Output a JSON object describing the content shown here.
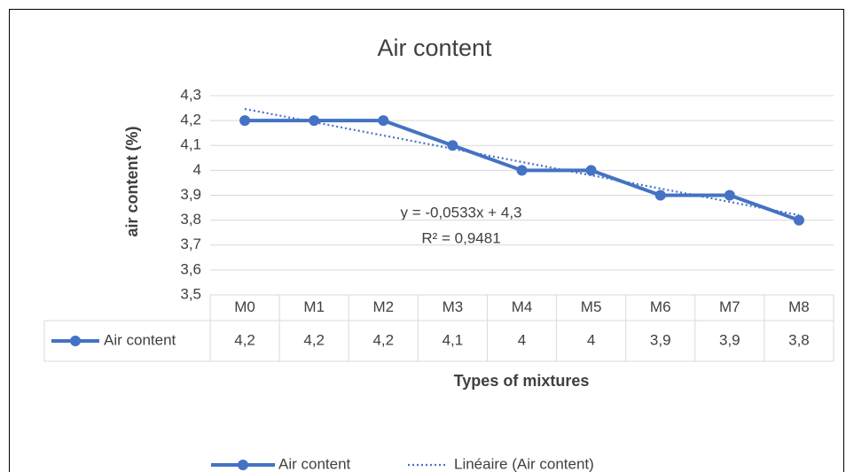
{
  "chart_data": {
    "type": "line",
    "title": "Air content",
    "y_label": "air content  (%)",
    "x_label": "Types of mixtures",
    "categories": [
      "M0",
      "M1",
      "M2",
      "M3",
      "M4",
      "M5",
      "M6",
      "M7",
      "M8"
    ],
    "series": [
      {
        "name": "Air content",
        "color": "#4472c4",
        "values": [
          4.2,
          4.2,
          4.2,
          4.1,
          4,
          4,
          3.9,
          3.9,
          3.8
        ],
        "value_labels": [
          "4,2",
          "4,2",
          "4,2",
          "4,1",
          "4",
          "4",
          "3,9",
          "3,9",
          "3,8"
        ]
      }
    ],
    "trendline": {
      "name": "Linéaire (Air content)",
      "slope": -0.0533,
      "intercept": 4.3,
      "equation": "y = -0,0533x + 4,3",
      "r2_label": "R² = 0,9481"
    },
    "ylim": [
      3.5,
      4.3
    ],
    "yticks": [
      {
        "value": 3.5,
        "label": "3,5"
      },
      {
        "value": 3.6,
        "label": "3,6"
      },
      {
        "value": 3.7,
        "label": "3,7"
      },
      {
        "value": 3.8,
        "label": "3,8"
      },
      {
        "value": 3.9,
        "label": "3,9"
      },
      4,
      {
        "value": 4.1,
        "label": "4,1"
      },
      {
        "value": 4.2,
        "label": "4,2"
      },
      {
        "value": 4.3,
        "label": "4,3"
      }
    ],
    "grid": true,
    "legend": "bottom"
  }
}
